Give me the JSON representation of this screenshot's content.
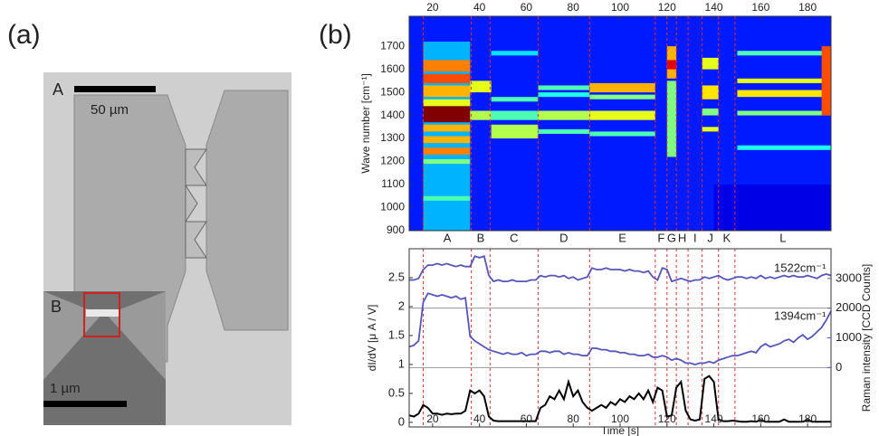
{
  "figure": {
    "panel_a": {
      "label": "(a)",
      "marker_a": "A",
      "scale_a": "50 µm",
      "marker_b": "B",
      "scale_b": "1 µm"
    },
    "panel_b": {
      "label": "(b)"
    }
  },
  "chart_data": [
    {
      "type": "heatmap",
      "ylabel": "Wave number [cm⁻¹]",
      "colormap": "jet",
      "xlim": [
        10,
        190
      ],
      "ylim": [
        900,
        1830
      ],
      "xticks": [
        20,
        40,
        60,
        80,
        100,
        120,
        140,
        160,
        180
      ],
      "yticks": [
        900,
        1000,
        1100,
        1200,
        1300,
        1400,
        1500,
        1600,
        1700
      ],
      "background": 0.15,
      "cells": [
        {
          "x": [
            140,
            190
          ],
          "y": [
            900,
            1100
          ],
          "value": 0.1
        },
        {
          "x": [
            16,
            36
          ],
          "y": [
            900,
            1720
          ],
          "value": 0.3
        },
        {
          "x": [
            16,
            36
          ],
          "y": [
            1590,
            1640
          ],
          "value": 0.75
        },
        {
          "x": [
            16,
            36
          ],
          "y": [
            1540,
            1580
          ],
          "value": 0.8
        },
        {
          "x": [
            16,
            36
          ],
          "y": [
            1480,
            1530
          ],
          "value": 0.7
        },
        {
          "x": [
            16,
            36
          ],
          "y": [
            1440,
            1470
          ],
          "value": 0.6
        },
        {
          "x": [
            16,
            36
          ],
          "y": [
            1370,
            1440
          ],
          "value": 1.0
        },
        {
          "x": [
            16,
            36
          ],
          "y": [
            1330,
            1360
          ],
          "value": 0.7
        },
        {
          "x": [
            16,
            36
          ],
          "y": [
            1280,
            1310
          ],
          "value": 0.7
        },
        {
          "x": [
            16,
            36
          ],
          "y": [
            1230,
            1260
          ],
          "value": 0.75
        },
        {
          "x": [
            16,
            36
          ],
          "y": [
            1190,
            1210
          ],
          "value": 0.5
        },
        {
          "x": [
            16,
            36
          ],
          "y": [
            1030,
            1050
          ],
          "value": 0.45
        },
        {
          "x": [
            36,
            45
          ],
          "y": [
            1500,
            1550
          ],
          "value": 0.6
        },
        {
          "x": [
            36,
            45
          ],
          "y": [
            1380,
            1420
          ],
          "value": 0.55
        },
        {
          "x": [
            45,
            65
          ],
          "y": [
            1660,
            1680
          ],
          "value": 0.35
        },
        {
          "x": [
            45,
            65
          ],
          "y": [
            1460,
            1480
          ],
          "value": 0.45
        },
        {
          "x": [
            45,
            65
          ],
          "y": [
            1380,
            1420
          ],
          "value": 0.45
        },
        {
          "x": [
            45,
            65
          ],
          "y": [
            1300,
            1360
          ],
          "value": 0.55
        },
        {
          "x": [
            65,
            87
          ],
          "y": [
            1510,
            1530
          ],
          "value": 0.45
        },
        {
          "x": [
            65,
            87
          ],
          "y": [
            1480,
            1500
          ],
          "value": 0.4
        },
        {
          "x": [
            65,
            87
          ],
          "y": [
            1380,
            1420
          ],
          "value": 0.55
        },
        {
          "x": [
            65,
            87
          ],
          "y": [
            1320,
            1340
          ],
          "value": 0.45
        },
        {
          "x": [
            87,
            115
          ],
          "y": [
            1500,
            1540
          ],
          "value": 0.7
        },
        {
          "x": [
            87,
            115
          ],
          "y": [
            1470,
            1490
          ],
          "value": 0.5
        },
        {
          "x": [
            87,
            115
          ],
          "y": [
            1380,
            1420
          ],
          "value": 0.6
        },
        {
          "x": [
            87,
            115
          ],
          "y": [
            1310,
            1330
          ],
          "value": 0.45
        },
        {
          "x": [
            120,
            124
          ],
          "y": [
            1220,
            1550
          ],
          "value": 0.5
        },
        {
          "x": [
            120,
            124
          ],
          "y": [
            1560,
            1700
          ],
          "value": 0.7
        },
        {
          "x": [
            120,
            124
          ],
          "y": [
            1600,
            1640
          ],
          "value": 0.9
        },
        {
          "x": [
            135,
            142
          ],
          "y": [
            1600,
            1650
          ],
          "value": 0.6
        },
        {
          "x": [
            135,
            142
          ],
          "y": [
            1470,
            1530
          ],
          "value": 0.65
        },
        {
          "x": [
            135,
            142
          ],
          "y": [
            1400,
            1430
          ],
          "value": 0.5
        },
        {
          "x": [
            135,
            142
          ],
          "y": [
            1330,
            1350
          ],
          "value": 0.6
        },
        {
          "x": [
            150,
            190
          ],
          "y": [
            1660,
            1680
          ],
          "value": 0.45
        },
        {
          "x": [
            150,
            190
          ],
          "y": [
            1540,
            1560
          ],
          "value": 0.6
        },
        {
          "x": [
            150,
            190
          ],
          "y": [
            1480,
            1510
          ],
          "value": 0.65
        },
        {
          "x": [
            150,
            190
          ],
          "y": [
            1400,
            1420
          ],
          "value": 0.5
        },
        {
          "x": [
            150,
            190
          ],
          "y": [
            1250,
            1270
          ],
          "value": 0.4
        },
        {
          "x": [
            186,
            190
          ],
          "y": [
            1400,
            1700
          ],
          "value": 0.8
        }
      ],
      "regions": {
        "labels": [
          "A",
          "B",
          "C",
          "D",
          "E",
          "F",
          "G",
          "H",
          "I",
          "J",
          "K",
          "L"
        ],
        "boundaries": [
          16,
          36.5,
          44.5,
          65,
          87,
          115,
          120,
          124,
          129,
          135,
          142,
          149
        ],
        "color": "#e03030"
      }
    },
    {
      "type": "line",
      "xlabel": "Time [s]",
      "ylabel": "dI/dV [μ A / V]",
      "y2label": "Raman intensity [CCD Counts]",
      "xlim": [
        10,
        190
      ],
      "ylim": [
        -0.08,
        3
      ],
      "y2lim": [
        -2000,
        4000
      ],
      "xticks": [
        20,
        40,
        60,
        80,
        100,
        120,
        140,
        160,
        180
      ],
      "yticks": [
        0,
        0.5,
        1,
        1.5,
        2,
        2.5
      ],
      "y2ticks": [
        0,
        1000,
        2000,
        3000
      ],
      "y2_reference_lines": [
        0,
        2000
      ],
      "y2color": "#5555bb",
      "x": [
        10,
        12,
        14,
        16,
        18,
        20,
        22,
        24,
        26,
        28,
        30,
        32,
        34,
        36,
        38,
        40,
        42,
        44,
        46,
        48,
        50,
        52,
        54,
        56,
        58,
        60,
        62,
        64,
        66,
        68,
        70,
        72,
        74,
        76,
        78,
        80,
        82,
        84,
        86,
        88,
        90,
        92,
        94,
        96,
        98,
        100,
        102,
        104,
        106,
        108,
        110,
        112,
        114,
        116,
        118,
        120,
        122,
        124,
        126,
        128,
        130,
        132,
        134,
        136,
        138,
        140,
        142,
        144,
        146,
        148,
        150,
        152,
        154,
        156,
        158,
        160,
        162,
        164,
        166,
        168,
        170,
        172,
        174,
        176,
        178,
        180,
        182,
        184,
        186,
        188,
        190
      ],
      "series": [
        {
          "name": "1522cm⁻¹",
          "color": "#5555bb",
          "axis": "y2",
          "values": [
            2950,
            2950,
            3000,
            3300,
            3450,
            3450,
            3500,
            3450,
            3500,
            3450,
            3400,
            3450,
            3400,
            3400,
            3750,
            3700,
            3750,
            3100,
            2900,
            2950,
            2900,
            2900,
            2950,
            2900,
            2900,
            2900,
            2950,
            2950,
            3100,
            3050,
            3100,
            3100,
            3050,
            3100,
            3000,
            3050,
            2950,
            3000,
            3050,
            3350,
            3300,
            3300,
            3350,
            3300,
            3300,
            3300,
            3250,
            3300,
            3250,
            3250,
            3200,
            3250,
            3050,
            2950,
            3350,
            3300,
            2900,
            2950,
            3000,
            2950,
            2900,
            2950,
            2950,
            3050,
            3000,
            3050,
            3100,
            3000,
            2950,
            3000,
            3050,
            3050,
            3000,
            3050,
            3000,
            3100,
            3000,
            3050,
            3000,
            3050,
            3100,
            3050,
            3100,
            3050,
            3050,
            3100,
            3050,
            3000,
            3100,
            3150,
            3100
          ]
        },
        {
          "name": "1394cm⁻¹",
          "color": "#5555bb",
          "axis": "y2",
          "values": [
            700,
            750,
            900,
            2200,
            2500,
            2450,
            2400,
            2450,
            2400,
            2350,
            2400,
            2300,
            2350,
            1050,
            900,
            800,
            700,
            600,
            550,
            500,
            450,
            500,
            450,
            450,
            500,
            400,
            450,
            450,
            550,
            550,
            500,
            550,
            550,
            450,
            500,
            450,
            450,
            400,
            400,
            650,
            650,
            600,
            600,
            550,
            550,
            500,
            500,
            450,
            450,
            400,
            400,
            450,
            350,
            350,
            400,
            350,
            250,
            300,
            250,
            150,
            150,
            100,
            150,
            150,
            200,
            150,
            250,
            300,
            350,
            400,
            400,
            450,
            500,
            550,
            500,
            700,
            800,
            700,
            750,
            800,
            900,
            950,
            850,
            1000,
            1100,
            950,
            1050,
            1200,
            1350,
            1600,
            1900
          ]
        },
        {
          "color": "#000000",
          "values": [
            0.12,
            0.1,
            0.15,
            0.3,
            0.25,
            0.15,
            0.15,
            0.13,
            0.15,
            0.14,
            0.15,
            0.15,
            0.2,
            0.55,
            0.5,
            0.55,
            0.45,
            0.1,
            0.03,
            0.02,
            0.02,
            0.02,
            0.02,
            0.02,
            0.02,
            0.02,
            0.02,
            0.02,
            0.25,
            0.3,
            0.45,
            0.4,
            0.55,
            0.4,
            0.7,
            0.45,
            0.55,
            0.35,
            0.25,
            0.2,
            0.25,
            0.3,
            0.25,
            0.35,
            0.3,
            0.4,
            0.35,
            0.45,
            0.4,
            0.5,
            0.4,
            0.55,
            0.35,
            0.6,
            0.55,
            0.1,
            0.12,
            0.6,
            0.7,
            0.2,
            0.05,
            0.03,
            0.05,
            0.75,
            0.8,
            0.7,
            0.05,
            0.02,
            0.02,
            0.03,
            0.02,
            0.01,
            0.01,
            0.02,
            0.01,
            0.04,
            0.01,
            0.01,
            0.01,
            0.01,
            0.05,
            0.01,
            0.01,
            0.01,
            0.01,
            0.04,
            0.01,
            0.01,
            0.01,
            0.01,
            0.01
          ]
        }
      ]
    }
  ]
}
